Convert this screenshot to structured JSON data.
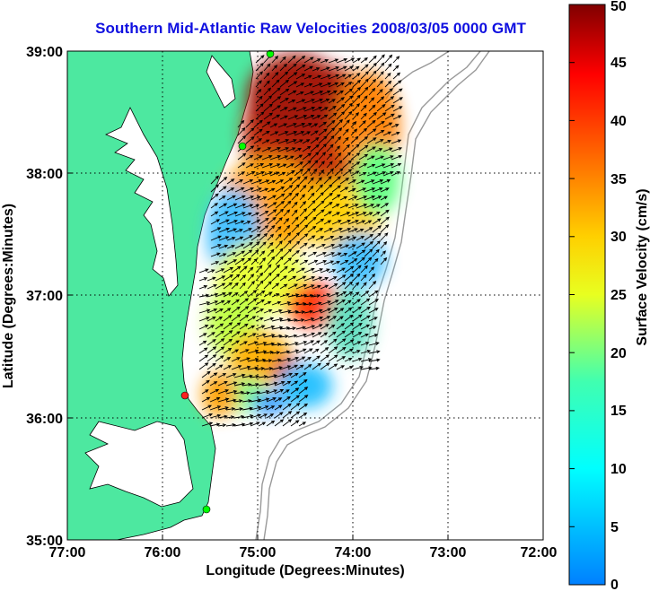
{
  "title": "Southern Mid-Atlantic Raw Velocities 2008/03/05 0000 GMT",
  "x_axis": {
    "label": "Longitude (Degrees:Minutes)",
    "ticks": [
      "77:00",
      "76:00",
      "75:00",
      "74:00",
      "73:00",
      "72:00"
    ]
  },
  "y_axis": {
    "label": "Latitude (Degrees:Minutes)",
    "ticks": [
      "39:00",
      "38:00",
      "37:00",
      "36:00",
      "35:00"
    ]
  },
  "colorbar": {
    "label": "Surface Velocity (cm/s)",
    "ticks": [
      "0",
      "5",
      "10",
      "15",
      "20",
      "25",
      "30",
      "35",
      "40",
      "45",
      "50"
    ],
    "min": 0,
    "max": 50
  },
  "map": {
    "lon_range": [
      -77,
      -72
    ],
    "lat_range": [
      35,
      39
    ],
    "grid": true,
    "land_color": "#4de8a0",
    "bathymetry_color": "#999999"
  },
  "sites": [
    {
      "color": "#00ff00"
    },
    {
      "color": "#00ff00"
    },
    {
      "color": "#ff2020"
    },
    {
      "color": "#00ff00"
    }
  ]
}
